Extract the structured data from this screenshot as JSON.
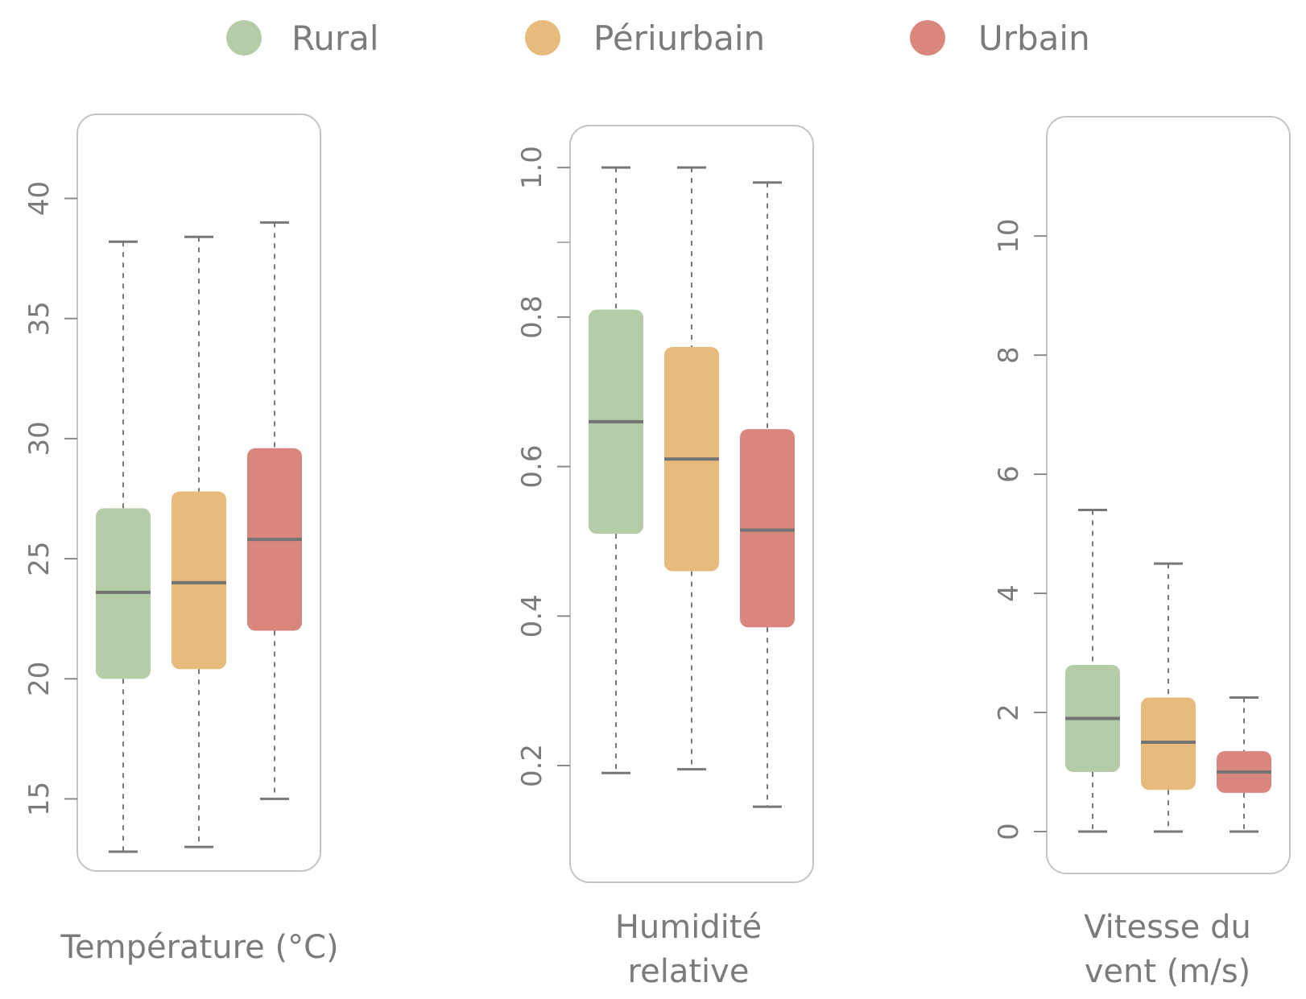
{
  "legend": [
    {
      "label": "Rural",
      "color": "#b5cca8"
    },
    {
      "label": "Périurbain",
      "color": "#e6bb7c"
    },
    {
      "label": "Urbain",
      "color": "#d9867c"
    }
  ],
  "chart_data": [
    {
      "type": "box",
      "xlabel_lines": [
        "Température (°C)"
      ],
      "ylim": [
        12.5,
        43
      ],
      "yticks": [
        15,
        20,
        25,
        30,
        35,
        40
      ],
      "ytick_labels": [
        "15",
        "20",
        "25",
        "30",
        "35",
        "40"
      ],
      "series": [
        {
          "name": "Rural",
          "whisker_low": 12.8,
          "q1": 20.0,
          "median": 23.6,
          "q3": 27.1,
          "whisker_high": 38.2
        },
        {
          "name": "Périurbain",
          "whisker_low": 13.0,
          "q1": 20.4,
          "median": 24.0,
          "q3": 27.8,
          "whisker_high": 38.4
        },
        {
          "name": "Urbain",
          "whisker_low": 15.0,
          "q1": 22.0,
          "median": 25.8,
          "q3": 29.6,
          "whisker_high": 39.0
        }
      ]
    },
    {
      "type": "box",
      "xlabel_lines": [
        "Humidité",
        "relative"
      ],
      "ylim": [
        0.06,
        1.04
      ],
      "yticks": [
        0.2,
        0.4,
        0.6,
        0.8,
        1.0
      ],
      "ytick_labels": [
        "0.2",
        "0.4",
        "0.6",
        "0.8",
        "1.0"
      ],
      "minor_yticks": [
        0.9
      ],
      "series": [
        {
          "name": "Rural",
          "whisker_low": 0.19,
          "q1": 0.51,
          "median": 0.66,
          "q3": 0.81,
          "whisker_high": 1.0
        },
        {
          "name": "Périurbain",
          "whisker_low": 0.195,
          "q1": 0.46,
          "median": 0.61,
          "q3": 0.76,
          "whisker_high": 1.0
        },
        {
          "name": "Urbain",
          "whisker_low": 0.145,
          "q1": 0.385,
          "median": 0.515,
          "q3": 0.65,
          "whisker_high": 0.98
        }
      ]
    },
    {
      "type": "box",
      "xlabel_lines": [
        "Vitesse du",
        "vent (m/s)"
      ],
      "ylim": [
        -0.5,
        11.8
      ],
      "yticks": [
        0,
        2,
        4,
        6,
        8,
        10
      ],
      "ytick_labels": [
        "0",
        "2",
        "4",
        "6",
        "8",
        "10"
      ],
      "series": [
        {
          "name": "Rural",
          "whisker_low": 0.0,
          "q1": 1.0,
          "median": 1.9,
          "q3": 2.8,
          "whisker_high": 5.4
        },
        {
          "name": "Périurbain",
          "whisker_low": 0.0,
          "q1": 0.7,
          "median": 1.5,
          "q3": 2.25,
          "whisker_high": 4.5
        },
        {
          "name": "Urbain",
          "whisker_low": 0.0,
          "q1": 0.65,
          "median": 1.0,
          "q3": 1.35,
          "whisker_high": 2.25
        }
      ]
    }
  ]
}
